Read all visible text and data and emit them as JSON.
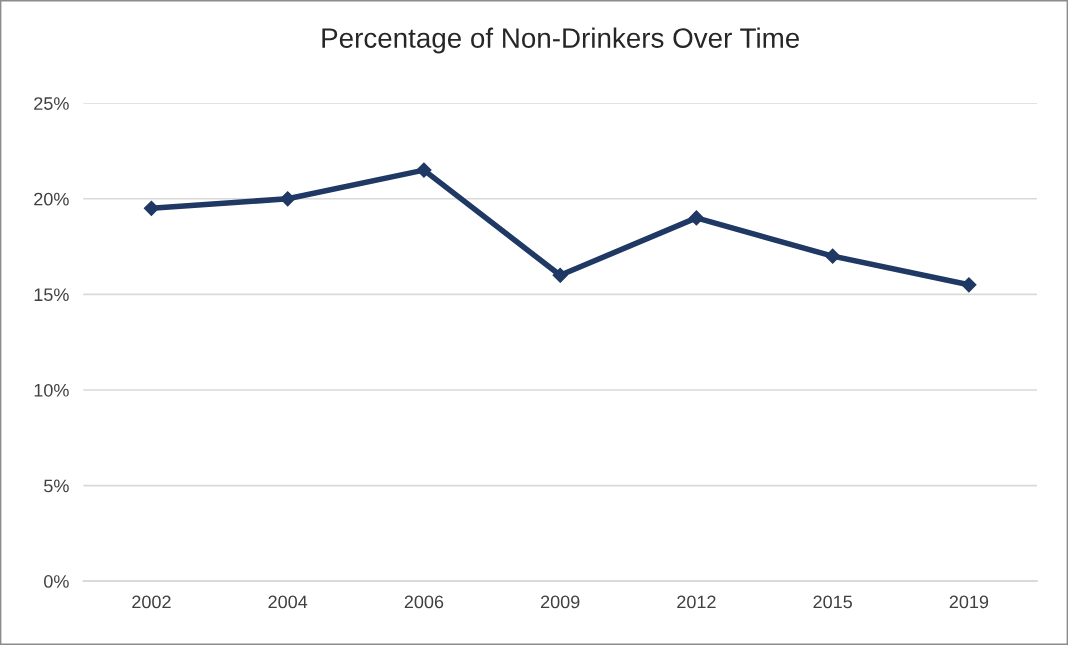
{
  "chart_data": {
    "type": "line",
    "title": "Percentage of Non-Drinkers Over Time",
    "categories": [
      "2002",
      "2004",
      "2006",
      "2009",
      "2012",
      "2015",
      "2019"
    ],
    "series": [
      {
        "color": "#203864",
        "values": [
          19.5,
          20,
          21.5,
          16,
          19,
          17,
          15.5
        ]
      }
    ],
    "ylim": [
      0,
      25
    ],
    "yticks": [
      {
        "value": 0,
        "label": "0%"
      },
      {
        "value": 5,
        "label": "5%"
      },
      {
        "value": 10,
        "label": "10%"
      },
      {
        "value": 15,
        "label": "15%"
      },
      {
        "value": 20,
        "label": "20%"
      },
      {
        "value": 25,
        "label": "25%"
      }
    ],
    "grid": "y",
    "marker": "diamond",
    "line_style": "solid"
  }
}
